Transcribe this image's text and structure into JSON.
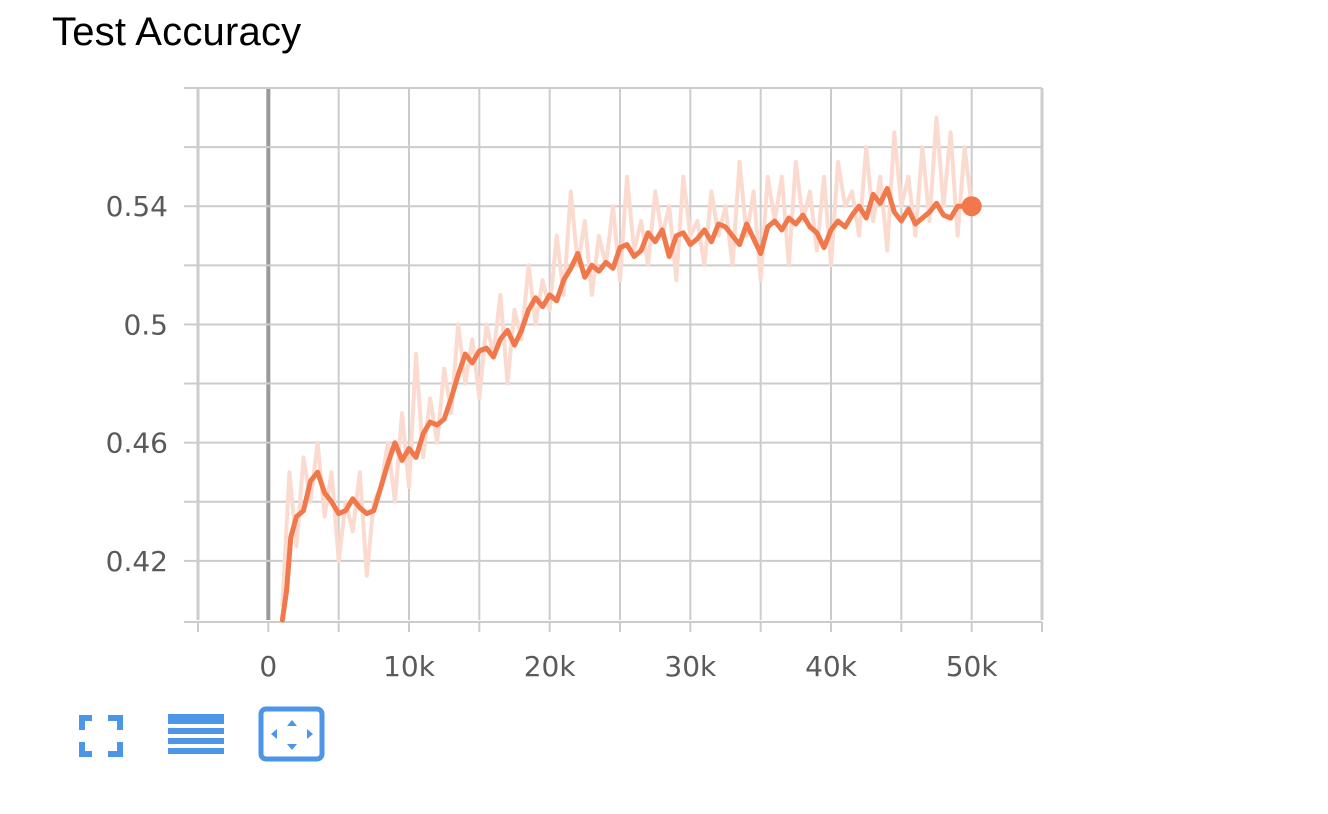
{
  "card": {
    "title": "Test Accuracy"
  },
  "toolbar": {
    "buttons": [
      {
        "icon": "fullscreen-icon"
      },
      {
        "icon": "data-table-icon"
      },
      {
        "icon": "fit-domain-icon",
        "active": true
      }
    ]
  },
  "colors": {
    "smoothed_line": "#f0784b",
    "raw_line": "#fbdbd0",
    "grid": "#cccccc",
    "axis_zero": "#999999",
    "toolbar_icon": "#4b96e6"
  },
  "chart_data": {
    "type": "line",
    "title": "Test Accuracy",
    "xlabel": "",
    "ylabel": "",
    "xlim": [
      -5000,
      55000
    ],
    "ylim": [
      0.4,
      0.58
    ],
    "x_ticks": [
      0,
      10000,
      20000,
      30000,
      40000,
      50000
    ],
    "x_tick_labels": [
      "0",
      "10k",
      "20k",
      "30k",
      "40k",
      "50k"
    ],
    "y_ticks": [
      0.42,
      0.46,
      0.5,
      0.54
    ],
    "y_tick_labels": [
      "0.42",
      "0.46",
      "0.5",
      "0.54"
    ],
    "grid": true,
    "series": [
      {
        "role": "raw",
        "x": [
          1000,
          1500,
          2000,
          2500,
          3000,
          3500,
          4000,
          4500,
          5000,
          5500,
          6000,
          6500,
          7000,
          7500,
          8000,
          8500,
          9000,
          9500,
          10000,
          10500,
          11000,
          11500,
          12000,
          12500,
          13000,
          13500,
          14000,
          14500,
          15000,
          15500,
          16000,
          16500,
          17000,
          17500,
          18000,
          18500,
          19000,
          19500,
          20000,
          20500,
          21000,
          21500,
          22000,
          22500,
          23000,
          23500,
          24000,
          24500,
          25000,
          25500,
          26000,
          26500,
          27000,
          27500,
          28000,
          28500,
          29000,
          29500,
          30000,
          30500,
          31000,
          31500,
          32000,
          32500,
          33000,
          33500,
          34000,
          34500,
          35000,
          35500,
          36000,
          36500,
          37000,
          37500,
          38000,
          38500,
          39000,
          39500,
          40000,
          40500,
          41000,
          41500,
          42000,
          42500,
          43000,
          43500,
          44000,
          44500,
          45000,
          45500,
          46000,
          46500,
          47000,
          47500,
          48000,
          48500,
          49000,
          49500,
          50000
        ],
        "values": [
          0.405,
          0.45,
          0.425,
          0.455,
          0.44,
          0.46,
          0.435,
          0.45,
          0.42,
          0.44,
          0.43,
          0.45,
          0.415,
          0.44,
          0.445,
          0.46,
          0.44,
          0.47,
          0.445,
          0.49,
          0.455,
          0.475,
          0.46,
          0.485,
          0.47,
          0.5,
          0.48,
          0.495,
          0.475,
          0.5,
          0.49,
          0.51,
          0.48,
          0.505,
          0.495,
          0.52,
          0.5,
          0.515,
          0.505,
          0.53,
          0.51,
          0.545,
          0.52,
          0.535,
          0.51,
          0.53,
          0.52,
          0.54,
          0.515,
          0.55,
          0.525,
          0.535,
          0.52,
          0.545,
          0.53,
          0.54,
          0.515,
          0.55,
          0.53,
          0.535,
          0.52,
          0.545,
          0.53,
          0.54,
          0.52,
          0.555,
          0.53,
          0.545,
          0.515,
          0.55,
          0.535,
          0.55,
          0.52,
          0.555,
          0.535,
          0.545,
          0.525,
          0.55,
          0.52,
          0.555,
          0.54,
          0.545,
          0.53,
          0.56,
          0.535,
          0.55,
          0.525,
          0.565,
          0.54,
          0.55,
          0.53,
          0.56,
          0.535,
          0.57,
          0.54,
          0.565,
          0.53,
          0.56,
          0.54
        ]
      },
      {
        "role": "smoothed",
        "x": [
          1000,
          1300,
          1600,
          2000,
          2500,
          3000,
          3500,
          4000,
          4500,
          5000,
          5500,
          6000,
          6500,
          7000,
          7500,
          8000,
          8500,
          9000,
          9500,
          10000,
          10500,
          11000,
          11500,
          12000,
          12500,
          13000,
          13500,
          14000,
          14500,
          15000,
          15500,
          16000,
          16500,
          17000,
          17500,
          18000,
          18500,
          19000,
          19500,
          20000,
          20500,
          21000,
          21500,
          22000,
          22500,
          23000,
          23500,
          24000,
          24500,
          25000,
          25500,
          26000,
          26500,
          27000,
          27500,
          28000,
          28500,
          29000,
          29500,
          30000,
          30500,
          31000,
          31500,
          32000,
          32500,
          33000,
          33500,
          34000,
          34500,
          35000,
          35500,
          36000,
          36500,
          37000,
          37500,
          38000,
          38500,
          39000,
          39500,
          40000,
          40500,
          41000,
          41500,
          42000,
          42500,
          43000,
          43500,
          44000,
          44500,
          45000,
          45500,
          46000,
          46500,
          47000,
          47500,
          48000,
          48500,
          49000,
          49500,
          50000
        ],
        "values": [
          0.4,
          0.41,
          0.428,
          0.435,
          0.437,
          0.447,
          0.45,
          0.443,
          0.44,
          0.436,
          0.437,
          0.441,
          0.438,
          0.436,
          0.437,
          0.445,
          0.453,
          0.46,
          0.454,
          0.458,
          0.455,
          0.463,
          0.467,
          0.466,
          0.468,
          0.475,
          0.483,
          0.49,
          0.487,
          0.491,
          0.492,
          0.489,
          0.495,
          0.498,
          0.493,
          0.498,
          0.505,
          0.509,
          0.506,
          0.51,
          0.508,
          0.515,
          0.519,
          0.524,
          0.516,
          0.52,
          0.518,
          0.521,
          0.519,
          0.526,
          0.527,
          0.523,
          0.525,
          0.531,
          0.528,
          0.532,
          0.523,
          0.53,
          0.531,
          0.527,
          0.529,
          0.532,
          0.528,
          0.534,
          0.533,
          0.53,
          0.527,
          0.534,
          0.529,
          0.524,
          0.533,
          0.535,
          0.532,
          0.536,
          0.534,
          0.537,
          0.533,
          0.531,
          0.526,
          0.532,
          0.535,
          0.533,
          0.537,
          0.54,
          0.536,
          0.544,
          0.541,
          0.546,
          0.538,
          0.535,
          0.539,
          0.534,
          0.536,
          0.538,
          0.541,
          0.537,
          0.536,
          0.54,
          0.54,
          0.54
        ]
      }
    ]
  }
}
